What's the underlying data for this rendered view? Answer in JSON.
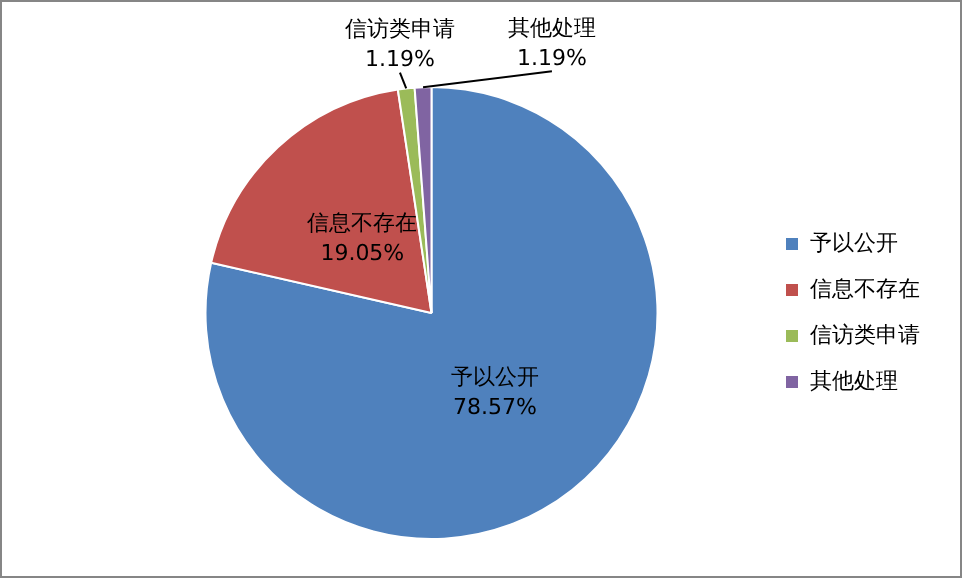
{
  "chart_data": {
    "type": "pie",
    "categories": [
      "予以公开",
      "信息不存在",
      "信访类申请",
      "其他处理"
    ],
    "values": [
      78.57,
      19.05,
      1.19,
      1.19
    ],
    "colors": [
      "#4f81bd",
      "#c0504d",
      "#9bbb59",
      "#8064a2"
    ],
    "value_labels": [
      "78.57%",
      "19.05%",
      "1.19%",
      "1.19%"
    ],
    "legend": "right"
  }
}
